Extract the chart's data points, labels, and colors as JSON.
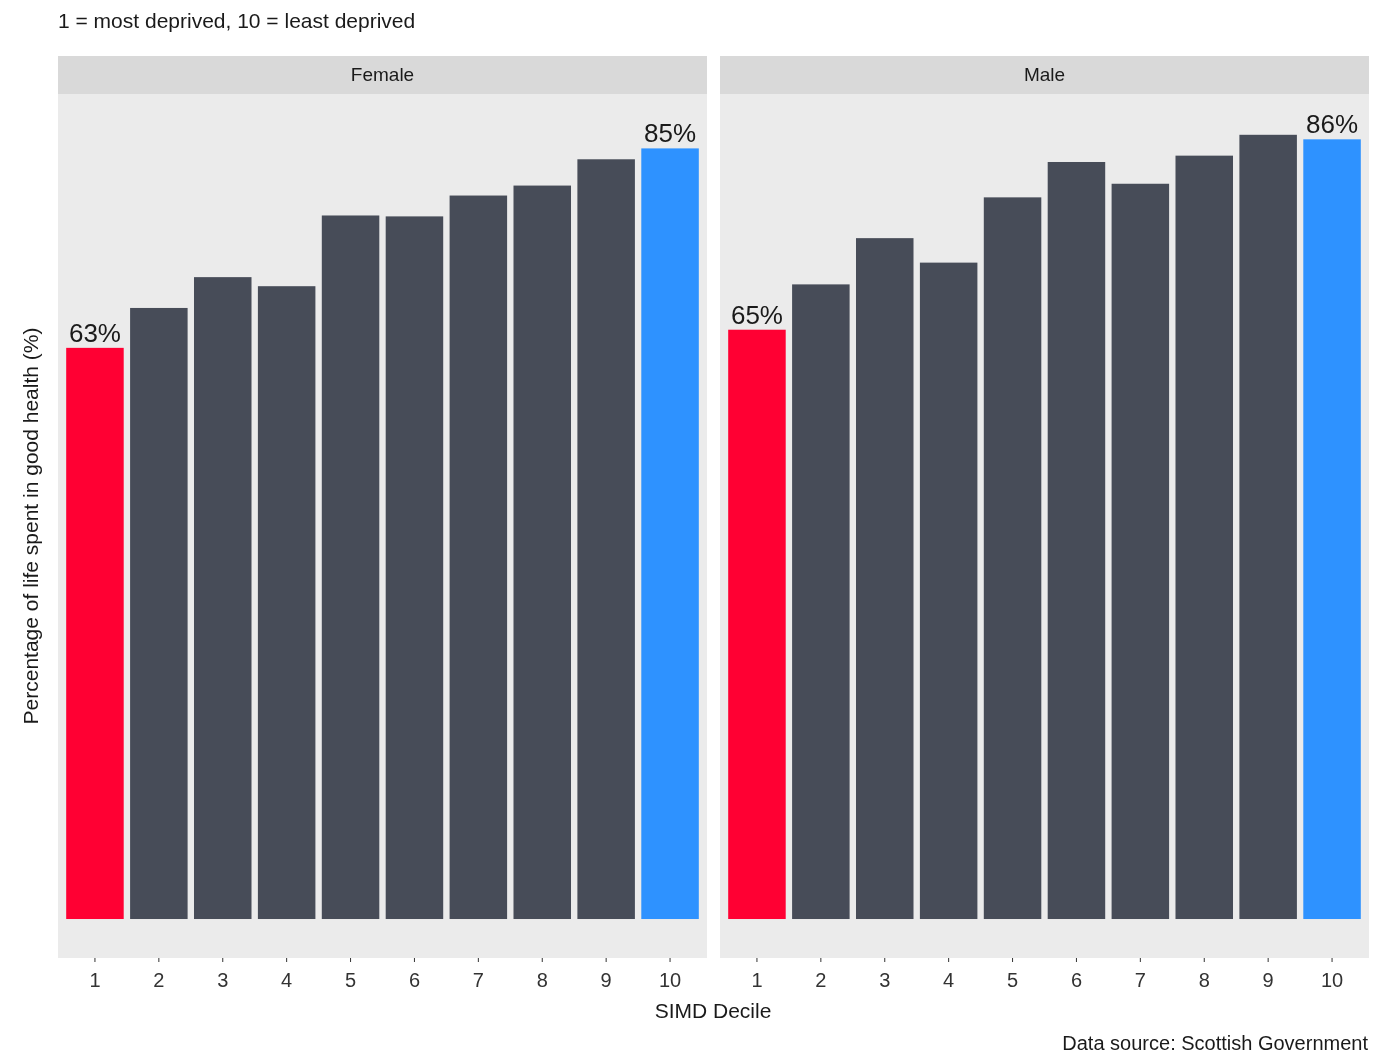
{
  "chart_data": [
    {
      "type": "bar",
      "title": "Female",
      "subtitle": "1 = most deprived, 10 = least deprived",
      "ylabel": "Percentage of life spent in good health (%)",
      "xlabel": "SIMD Decile",
      "categories": [
        "1",
        "2",
        "3",
        "4",
        "5",
        "6",
        "7",
        "8",
        "9",
        "10"
      ],
      "values": [
        63,
        67.4,
        70.8,
        69.8,
        77.6,
        77.5,
        79.8,
        80.9,
        83.8,
        85
      ],
      "colors": [
        "#ff0033",
        "#474c58",
        "#474c58",
        "#474c58",
        "#474c58",
        "#474c58",
        "#474c58",
        "#474c58",
        "#474c58",
        "#2e92ff"
      ],
      "value_labels": [
        "63%",
        null,
        null,
        null,
        null,
        null,
        null,
        null,
        null,
        "85%"
      ],
      "ylim": [
        -4.3,
        91
      ],
      "tick_labels": "x"
    },
    {
      "type": "bar",
      "title": "Male",
      "annotations": [
        "Data source: Scottish Government"
      ],
      "categories": [
        "1",
        "2",
        "3",
        "4",
        "5",
        "6",
        "7",
        "8",
        "9",
        "10"
      ],
      "values": [
        65,
        70,
        75.1,
        72.4,
        79.6,
        83.5,
        81.1,
        84.2,
        86.5,
        86
      ],
      "colors": [
        "#ff0033",
        "#474c58",
        "#474c58",
        "#474c58",
        "#474c58",
        "#474c58",
        "#474c58",
        "#474c58",
        "#474c58",
        "#2e92ff"
      ],
      "value_labels": [
        "65%",
        null,
        null,
        null,
        null,
        null,
        null,
        null,
        null,
        "86%"
      ],
      "ylim": [
        -4.3,
        91
      ],
      "tick_labels": "x"
    }
  ]
}
